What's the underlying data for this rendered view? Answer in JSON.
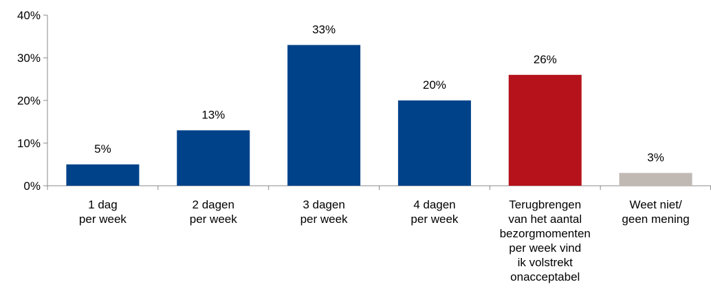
{
  "chart_data": {
    "type": "bar",
    "categories": [
      [
        "1 dag",
        "per week"
      ],
      [
        "2 dagen",
        "per week"
      ],
      [
        "3 dagen",
        "per week"
      ],
      [
        "4 dagen",
        "per week"
      ],
      [
        "Terugbrengen",
        "van het aantal",
        "bezorgmomenten",
        "per week vind",
        "ik volstrekt",
        "onacceptabel"
      ],
      [
        "Weet niet/",
        "geen mening"
      ]
    ],
    "values": [
      5,
      13,
      33,
      20,
      26,
      3
    ],
    "value_labels": [
      "5%",
      "13%",
      "33%",
      "20%",
      "26%",
      "3%"
    ],
    "colors": [
      "#00428a",
      "#00428a",
      "#00428a",
      "#00428a",
      "#b5121b",
      "#c0b8b2"
    ],
    "ylim": [
      0,
      40
    ],
    "yticks": [
      0,
      10,
      20,
      30,
      40
    ],
    "ytick_labels": [
      "0%",
      "10%",
      "20%",
      "30%",
      "40%"
    ],
    "axis_color": "#888888",
    "grid": false,
    "legend": "none"
  }
}
